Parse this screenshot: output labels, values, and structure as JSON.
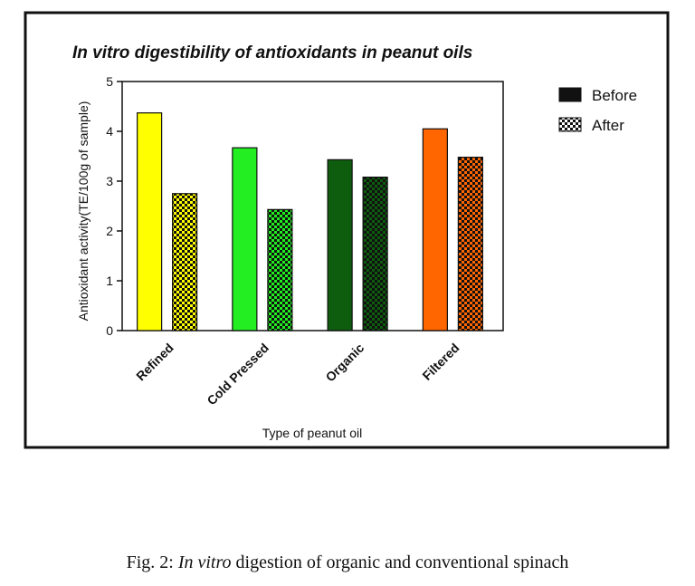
{
  "chart_data": {
    "type": "bar",
    "title": "In vitro digestibility of antioxidants in peanut oils",
    "xlabel": "Type of peanut oil",
    "ylabel": "Antioxidant activity(TE/100g of sample)",
    "ylim": [
      0,
      5
    ],
    "yticks": [
      "0",
      "1",
      "2",
      "3",
      "4",
      "5"
    ],
    "categories": [
      "Refined",
      "Cold Pressed",
      "Organic",
      "Filtered"
    ],
    "category_colors": [
      "#ffff00",
      "#22ee22",
      "#0e5c0e",
      "#ff6600"
    ],
    "series": [
      {
        "name": "Before",
        "pattern": "solid",
        "values": [
          4.37,
          3.67,
          3.43,
          4.05
        ]
      },
      {
        "name": "After",
        "pattern": "checkered",
        "values": [
          2.75,
          2.43,
          3.08,
          3.48
        ]
      }
    ],
    "legend_position": "right",
    "grid": false
  },
  "caption": {
    "prefix": "Fig. 2: ",
    "italic": "In vitro",
    "suffix": " digestion of organic and conventional spinach"
  }
}
